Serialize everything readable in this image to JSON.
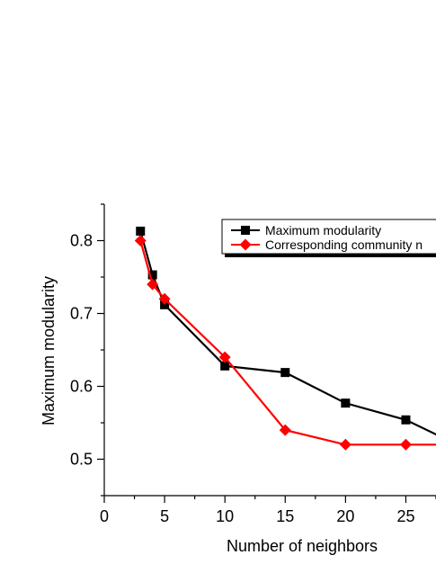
{
  "chart_data": {
    "type": "line",
    "xlabel": "Number of neighbors",
    "ylabel": "Maximum modularity",
    "xlim": [
      0,
      27.5
    ],
    "ylim": [
      0.45,
      0.85
    ],
    "x_ticks": [
      "0",
      "5",
      "10",
      "15",
      "20",
      "25"
    ],
    "y_ticks": [
      "0.5",
      "0.6",
      "0.7",
      "0.8"
    ],
    "legend_position": "top-right",
    "series": [
      {
        "name": "Maximum modularity",
        "color": "#000000",
        "marker": "square",
        "x": [
          3,
          4,
          5,
          10,
          15,
          20,
          25,
          28
        ],
        "y": [
          0.813,
          0.753,
          0.712,
          0.628,
          0.619,
          0.577,
          0.554,
          0.53
        ]
      },
      {
        "name": "Corresponding community n",
        "color": "#ff0000",
        "marker": "diamond",
        "x": [
          3,
          4,
          5,
          10,
          15,
          20,
          25,
          28
        ],
        "y": [
          0.8,
          0.74,
          0.72,
          0.64,
          0.54,
          0.52,
          0.52,
          0.52
        ]
      }
    ]
  }
}
